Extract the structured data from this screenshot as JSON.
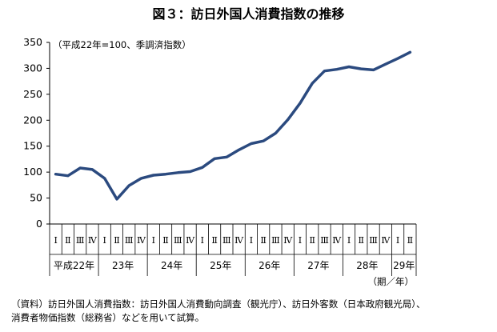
{
  "title": "図３：訪日外国人消費指数の推移",
  "footnote": "（資料）訪日外国人消費指数：訪日外国人消費動向調査（観光庁）、訪日外客数（日本政府観光局）、\n消費者物価指数（総務省）などを用いて試算。",
  "chart_data": {
    "type": "line",
    "unit_label": "（平成22年=100、季調済指数）",
    "period_label": "（期／年）",
    "ylim": [
      0,
      350
    ],
    "yticks": [
      0,
      50,
      100,
      150,
      200,
      250,
      300,
      350
    ],
    "color": "#2b4a7f",
    "quarters": [
      "Ⅰ",
      "Ⅱ",
      "Ⅲ",
      "Ⅳ",
      "Ⅰ",
      "Ⅱ",
      "Ⅲ",
      "Ⅳ",
      "Ⅰ",
      "Ⅱ",
      "Ⅲ",
      "Ⅳ",
      "Ⅰ",
      "Ⅱ",
      "Ⅲ",
      "Ⅳ",
      "Ⅰ",
      "Ⅱ",
      "Ⅲ",
      "Ⅳ",
      "Ⅰ",
      "Ⅱ",
      "Ⅲ",
      "Ⅳ",
      "Ⅰ",
      "Ⅱ",
      "Ⅲ",
      "Ⅳ",
      "Ⅰ",
      "Ⅱ"
    ],
    "years": [
      {
        "label": "平成22年",
        "start": 0,
        "count": 4
      },
      {
        "label": "23年",
        "start": 4,
        "count": 4
      },
      {
        "label": "24年",
        "start": 8,
        "count": 4
      },
      {
        "label": "25年",
        "start": 12,
        "count": 4
      },
      {
        "label": "26年",
        "start": 16,
        "count": 4
      },
      {
        "label": "27年",
        "start": 20,
        "count": 4
      },
      {
        "label": "28年",
        "start": 24,
        "count": 4
      },
      {
        "label": "29年",
        "start": 28,
        "count": 2
      }
    ],
    "values": [
      96,
      93,
      108,
      105,
      88,
      48,
      74,
      88,
      94,
      96,
      99,
      101,
      109,
      126,
      129,
      143,
      155,
      160,
      175,
      201,
      233,
      271,
      295,
      298,
      303,
      299,
      297,
      308,
      319,
      331
    ]
  }
}
